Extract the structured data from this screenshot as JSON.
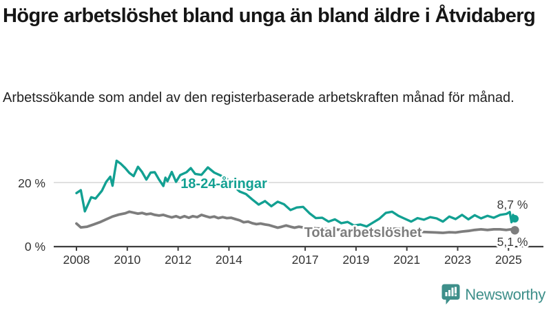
{
  "title": "Högre arbetslöshet bland unga än bland äldre i Åtvidaberg",
  "subtitle": "Arbetssökande som andel av den registerbaserade arbetskraften månad för månad.",
  "branding": {
    "logo_text": "Newsworthy",
    "logo_color": "#3e8f8a",
    "logo_icon": "speech-bubble-bar-chart"
  },
  "colors": {
    "young_series": "#12a092",
    "total_series": "#7d7d7d",
    "grid": "#d8d8d8",
    "axis": "#3d3d3d",
    "tick_text": "#333333",
    "value_label": "#3c3c3c",
    "title_text": "#161616"
  },
  "chart_data": {
    "type": "line",
    "title": "Högre arbetslöshet bland unga än bland äldre i Åtvidaberg",
    "xlabel": "",
    "ylabel": "",
    "x_axis": {
      "tick_years": [
        2008,
        2010,
        2012,
        2014,
        2017,
        2019,
        2021,
        2023,
        2025
      ],
      "tick_labels": [
        "2008",
        "2010",
        "2012",
        "2014",
        "2017",
        "2019",
        "2021",
        "2023",
        "2025"
      ],
      "range": [
        2007.8,
        2025.4
      ]
    },
    "y_axis": {
      "ticks": [
        0,
        20
      ],
      "tick_labels": [
        "0 %",
        "20 %"
      ],
      "range": [
        0,
        28
      ],
      "unit": "%"
    },
    "grid": "horizontal line at 20% only",
    "legend_position": "labels drawn on lines",
    "series": [
      {
        "name": "18-24-åringar",
        "color": "#12a092",
        "end_label": "8,7 %",
        "end_value": 8.7,
        "x": [
          2008.0,
          2008.17,
          2008.33,
          2008.58,
          2008.75,
          2009.0,
          2009.17,
          2009.33,
          2009.42,
          2009.5,
          2009.58,
          2009.75,
          2009.92,
          2010.08,
          2010.25,
          2010.42,
          2010.58,
          2010.75,
          2010.92,
          2011.08,
          2011.25,
          2011.42,
          2011.5,
          2011.58,
          2011.75,
          2011.92,
          2012.08,
          2012.33,
          2012.5,
          2012.67,
          2012.92,
          2013.17,
          2013.42,
          2013.67,
          2013.92,
          2014.17,
          2014.42,
          2014.67,
          2014.92,
          2015.17,
          2015.42,
          2015.67,
          2015.92,
          2016.17,
          2016.42,
          2016.67,
          2016.92,
          2017.17,
          2017.42,
          2017.67,
          2017.92,
          2018.17,
          2018.42,
          2018.67,
          2018.92,
          2019.17,
          2019.42,
          2019.67,
          2019.92,
          2020.17,
          2020.42,
          2020.67,
          2020.92,
          2021.17,
          2021.42,
          2021.67,
          2021.92,
          2022.17,
          2022.42,
          2022.67,
          2022.92,
          2023.17,
          2023.42,
          2023.67,
          2023.92,
          2024.17,
          2024.42,
          2024.67,
          2024.92,
          2025.05,
          2025.12,
          2025.18,
          2025.25
        ],
        "values": [
          16.7,
          17.6,
          11.0,
          15.4,
          15.0,
          17.4,
          20.2,
          21.8,
          19.0,
          23.0,
          26.8,
          25.8,
          24.5,
          23.0,
          22.0,
          24.9,
          23.3,
          20.9,
          23.1,
          23.2,
          20.9,
          18.9,
          21.5,
          20.4,
          23.3,
          20.2,
          22.3,
          23.2,
          24.5,
          22.7,
          22.4,
          24.7,
          23.1,
          22.2,
          21.2,
          19.0,
          17.2,
          16.4,
          14.7,
          13.1,
          14.2,
          12.6,
          14.0,
          13.2,
          11.4,
          12.2,
          12.4,
          10.4,
          8.9,
          9.0,
          7.8,
          8.5,
          7.3,
          7.7,
          6.6,
          6.9,
          6.3,
          7.5,
          8.7,
          10.5,
          10.9,
          9.6,
          8.7,
          7.8,
          8.9,
          8.4,
          9.2,
          8.8,
          7.8,
          9.4,
          8.6,
          9.9,
          8.5,
          9.8,
          8.8,
          9.6,
          9.0,
          9.9,
          10.2,
          10.8,
          7.6,
          9.9,
          8.7
        ]
      },
      {
        "name": "Total arbetslöshet",
        "color": "#7d7d7d",
        "end_label": "5,1 %",
        "end_value": 5.1,
        "x": [
          2008.0,
          2008.17,
          2008.42,
          2008.67,
          2008.92,
          2009.17,
          2009.42,
          2009.67,
          2009.92,
          2010.08,
          2010.25,
          2010.42,
          2010.58,
          2010.75,
          2010.92,
          2011.08,
          2011.25,
          2011.42,
          2011.58,
          2011.75,
          2011.92,
          2012.08,
          2012.25,
          2012.42,
          2012.58,
          2012.75,
          2012.92,
          2013.08,
          2013.25,
          2013.42,
          2013.58,
          2013.75,
          2013.92,
          2014.08,
          2014.25,
          2014.42,
          2014.58,
          2014.75,
          2014.92,
          2015.08,
          2015.25,
          2015.42,
          2015.58,
          2015.75,
          2015.92,
          2016.08,
          2016.25,
          2016.42,
          2016.58,
          2016.75,
          2016.92,
          2017.17,
          2017.42,
          2017.67,
          2017.92,
          2018.25,
          2018.58,
          2018.92,
          2019.25,
          2019.58,
          2019.92,
          2020.25,
          2020.58,
          2020.92,
          2021.25,
          2021.58,
          2021.92,
          2022.17,
          2022.42,
          2022.67,
          2022.92,
          2023.17,
          2023.42,
          2023.67,
          2023.92,
          2024.17,
          2024.42,
          2024.67,
          2024.92,
          2025.1,
          2025.25
        ],
        "values": [
          7.2,
          6.0,
          6.2,
          6.9,
          7.6,
          8.5,
          9.4,
          10.0,
          10.4,
          10.9,
          10.6,
          10.3,
          10.5,
          10.1,
          10.3,
          9.9,
          9.7,
          9.9,
          9.5,
          9.1,
          9.5,
          9.0,
          9.5,
          9.0,
          9.5,
          9.2,
          9.9,
          9.5,
          9.1,
          9.4,
          8.9,
          9.2,
          8.9,
          9.0,
          8.6,
          8.2,
          7.6,
          7.8,
          7.3,
          7.0,
          7.2,
          6.9,
          6.7,
          6.3,
          5.9,
          6.2,
          6.6,
          6.2,
          5.9,
          6.2,
          6.0,
          5.9,
          5.7,
          5.6,
          5.4,
          5.3,
          5.2,
          5.0,
          4.9,
          4.9,
          5.1,
          5.5,
          5.6,
          5.3,
          4.9,
          4.6,
          4.5,
          4.4,
          4.3,
          4.5,
          4.4,
          4.7,
          4.9,
          5.2,
          5.4,
          5.2,
          5.4,
          5.4,
          5.2,
          5.4,
          5.1
        ]
      }
    ]
  }
}
